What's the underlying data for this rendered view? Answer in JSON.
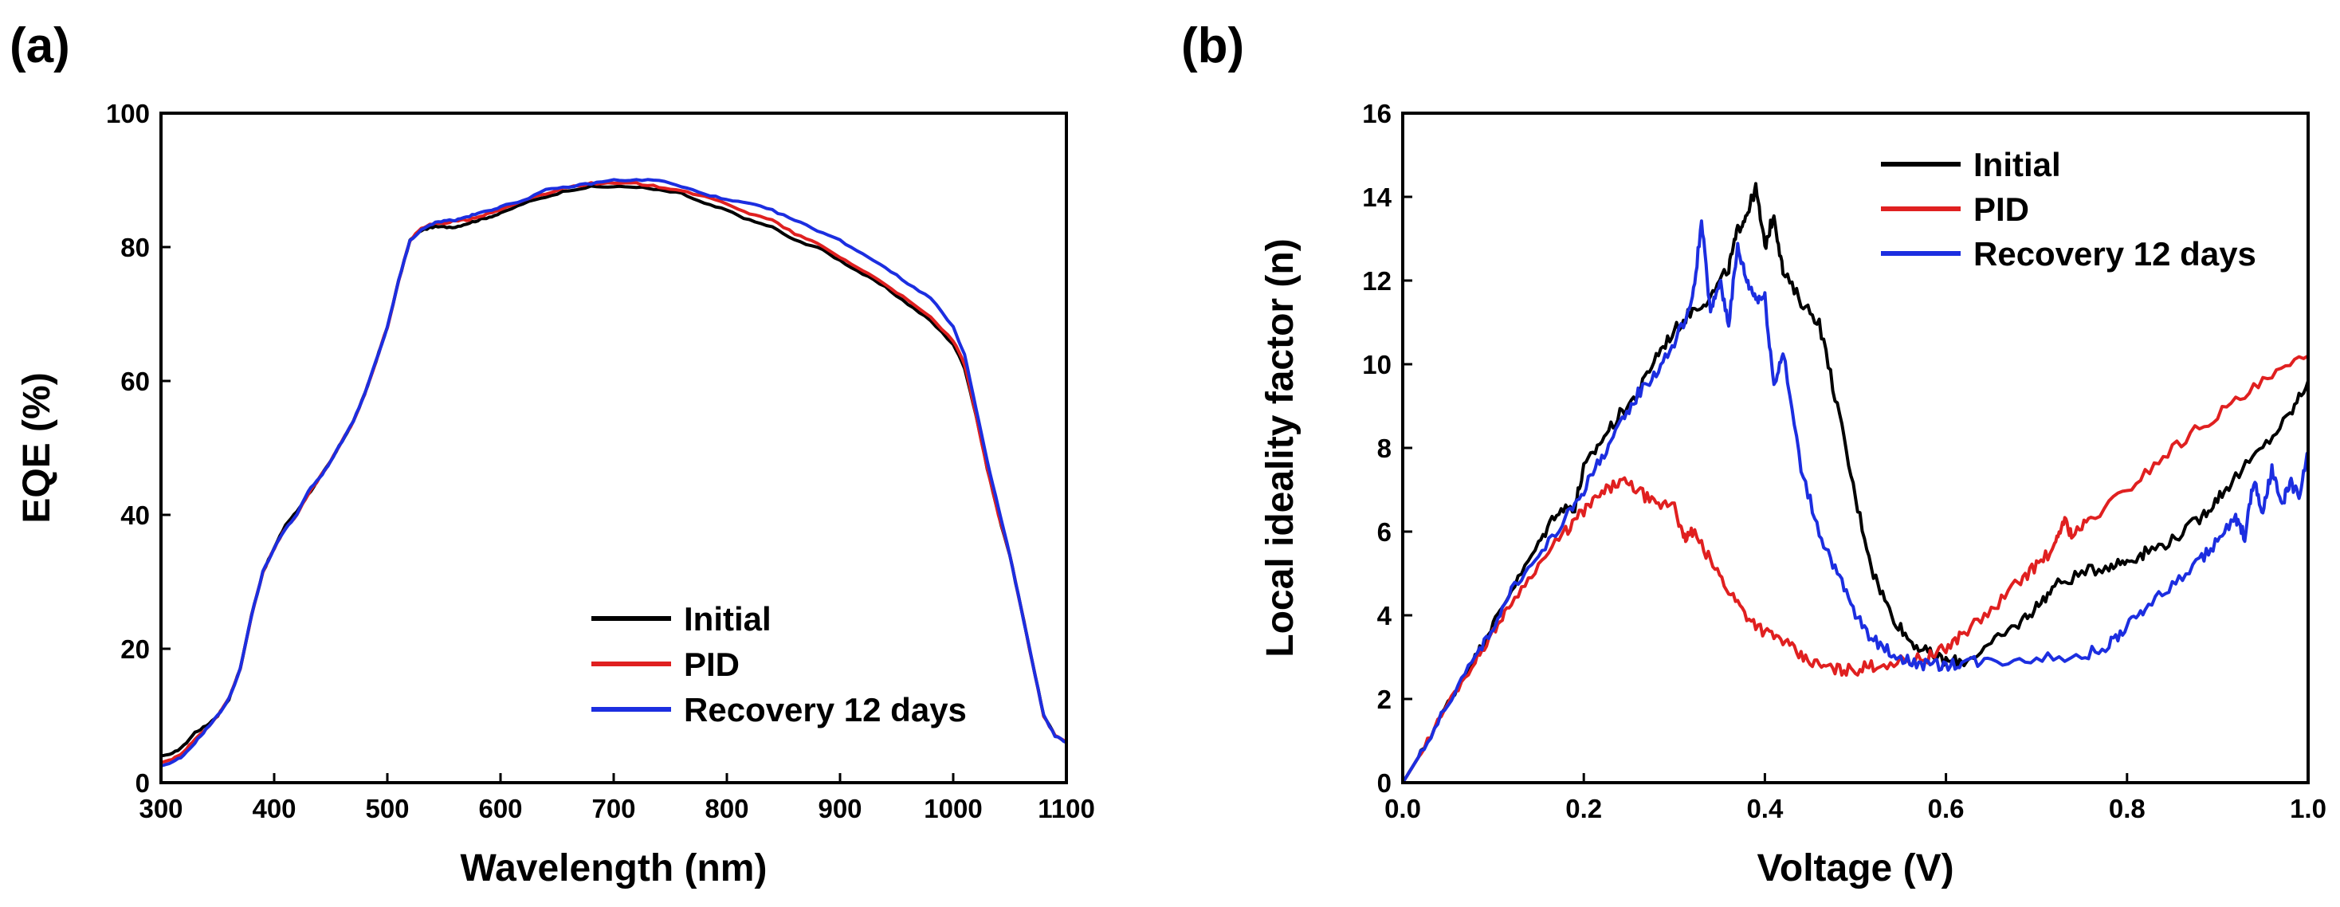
{
  "chart_data": [
    {
      "panel_label": "(a)",
      "type": "line",
      "title": "",
      "xlabel": "Wavelength (nm)",
      "ylabel": "EQE (%)",
      "xlim": [
        300,
        1100
      ],
      "ylim": [
        0,
        100
      ],
      "xticks": [
        300,
        400,
        500,
        600,
        700,
        800,
        900,
        1000,
        1100
      ],
      "yticks": [
        0,
        20,
        40,
        60,
        80,
        100
      ],
      "xtick_labels": [
        "300",
        "400",
        "500",
        "600",
        "700",
        "800",
        "900",
        "1000",
        "1100"
      ],
      "ytick_labels": [
        "0",
        "20",
        "40",
        "60",
        "80",
        "100"
      ],
      "legend_position": "bottom-right",
      "series": [
        {
          "name": "Initial",
          "color": "#000000",
          "x": [
            300,
            310,
            320,
            330,
            340,
            350,
            360,
            370,
            380,
            390,
            400,
            410,
            420,
            430,
            440,
            450,
            460,
            470,
            480,
            490,
            500,
            510,
            520,
            530,
            540,
            550,
            560,
            570,
            580,
            590,
            600,
            620,
            640,
            660,
            680,
            700,
            720,
            740,
            760,
            780,
            800,
            820,
            840,
            860,
            880,
            900,
            920,
            940,
            960,
            980,
            1000,
            1010,
            1020,
            1030,
            1040,
            1050,
            1060,
            1070,
            1080,
            1090,
            1100
          ],
          "values": [
            4,
            4.3,
            5.5,
            7.5,
            8.5,
            10,
            12.5,
            17,
            25,
            31.5,
            35,
            38.5,
            40.5,
            43,
            45.5,
            48,
            51,
            54,
            58,
            63,
            68,
            75,
            81,
            82.5,
            83,
            83,
            83,
            83.5,
            84,
            84.5,
            85,
            86.5,
            87.5,
            88.5,
            89,
            89,
            89,
            88.5,
            88,
            86.5,
            85.5,
            84,
            83,
            81,
            80,
            78,
            76,
            74,
            71.5,
            69,
            65.5,
            62,
            55,
            47,
            40,
            34,
            26,
            18,
            10,
            7,
            6
          ]
        },
        {
          "name": "PID",
          "color": "#e02020",
          "x": [
            300,
            310,
            320,
            330,
            340,
            350,
            360,
            370,
            380,
            390,
            400,
            410,
            420,
            430,
            440,
            450,
            460,
            470,
            480,
            490,
            500,
            510,
            520,
            530,
            540,
            550,
            560,
            570,
            580,
            590,
            600,
            620,
            640,
            660,
            680,
            700,
            720,
            740,
            760,
            780,
            800,
            820,
            840,
            860,
            880,
            900,
            920,
            940,
            960,
            980,
            1000,
            1010,
            1020,
            1030,
            1040,
            1050,
            1060,
            1070,
            1080,
            1090,
            1100
          ],
          "values": [
            3,
            3.5,
            4.5,
            6.5,
            8,
            10,
            12.5,
            17,
            25,
            31.5,
            35,
            38,
            40,
            43,
            45.5,
            48,
            51,
            54,
            58,
            63,
            68,
            75,
            81,
            82.8,
            83.5,
            83.5,
            84,
            84,
            84.5,
            85,
            85.5,
            87,
            88,
            89,
            89.5,
            89.5,
            89.5,
            89,
            88.5,
            87.5,
            86.5,
            85,
            84,
            82,
            80.5,
            78.5,
            76.5,
            74.5,
            72,
            69.5,
            66,
            62.5,
            55,
            47,
            40,
            34,
            26,
            18,
            10,
            7,
            6
          ]
        },
        {
          "name": "Recovery 12 days",
          "color": "#1c2ee0",
          "x": [
            300,
            310,
            320,
            330,
            340,
            350,
            360,
            370,
            380,
            390,
            400,
            410,
            420,
            430,
            440,
            450,
            460,
            470,
            480,
            490,
            500,
            510,
            520,
            530,
            540,
            550,
            560,
            570,
            580,
            590,
            600,
            620,
            640,
            660,
            680,
            700,
            720,
            740,
            760,
            780,
            800,
            820,
            840,
            860,
            880,
            900,
            920,
            940,
            960,
            980,
            1000,
            1010,
            1020,
            1030,
            1040,
            1050,
            1060,
            1070,
            1080,
            1090,
            1100
          ],
          "values": [
            2.5,
            3,
            4,
            6,
            8,
            10,
            12.5,
            17,
            25,
            31.5,
            35,
            38,
            40,
            43.5,
            45.5,
            48,
            51,
            54,
            58,
            63,
            68,
            75,
            81,
            82.5,
            83.5,
            84,
            84,
            84.5,
            85,
            85.5,
            86,
            87,
            88.5,
            89,
            89.5,
            90,
            90,
            90,
            89,
            88,
            87,
            86.5,
            85.5,
            84,
            82.5,
            81,
            79,
            77,
            74.5,
            72.5,
            68,
            64,
            56,
            48,
            41,
            34,
            26,
            18,
            10,
            7,
            6
          ]
        }
      ]
    },
    {
      "panel_label": "(b)",
      "type": "line",
      "title": "",
      "xlabel": "Voltage (V)",
      "ylabel": "Local ideality factor (n)",
      "xlim": [
        0.0,
        1.0
      ],
      "ylim": [
        0,
        16
      ],
      "xticks": [
        0.0,
        0.2,
        0.4,
        0.6,
        0.8,
        1.0
      ],
      "yticks": [
        0,
        2,
        4,
        6,
        8,
        10,
        12,
        14,
        16
      ],
      "xtick_labels": [
        "0.0",
        "0.2",
        "0.4",
        "0.6",
        "0.8",
        "1.0"
      ],
      "ytick_labels": [
        "0",
        "2",
        "4",
        "6",
        "8",
        "10",
        "12",
        "14",
        "16"
      ],
      "legend_position": "top-right",
      "series": [
        {
          "name": "Initial",
          "color": "#000000",
          "x": [
            0.0,
            0.02,
            0.05,
            0.08,
            0.1,
            0.12,
            0.15,
            0.17,
            0.19,
            0.2,
            0.22,
            0.24,
            0.26,
            0.28,
            0.3,
            0.32,
            0.34,
            0.36,
            0.37,
            0.38,
            0.39,
            0.4,
            0.41,
            0.42,
            0.44,
            0.46,
            0.48,
            0.5,
            0.52,
            0.54,
            0.56,
            0.58,
            0.6,
            0.62,
            0.65,
            0.68,
            0.7,
            0.72,
            0.75,
            0.78,
            0.8,
            0.82,
            0.85,
            0.88,
            0.9,
            0.92,
            0.95,
            0.98,
            1.0
          ],
          "values": [
            0,
            0.7,
            1.9,
            3.0,
            3.8,
            4.6,
            5.7,
            6.5,
            6.6,
            7.5,
            8.2,
            8.8,
            9.3,
            10.2,
            10.8,
            11.3,
            11.6,
            12.3,
            13.2,
            13.6,
            14.2,
            12.8,
            13.6,
            12.2,
            11.5,
            11.0,
            9.0,
            6.8,
            5.0,
            4.0,
            3.4,
            3.1,
            2.9,
            2.9,
            3.3,
            3.8,
            4.2,
            4.7,
            5.0,
            5.2,
            5.3,
            5.5,
            5.8,
            6.3,
            6.8,
            7.3,
            8.0,
            8.8,
            9.6
          ]
        },
        {
          "name": "PID",
          "color": "#e02020",
          "x": [
            0.0,
            0.02,
            0.05,
            0.08,
            0.1,
            0.12,
            0.15,
            0.18,
            0.2,
            0.22,
            0.24,
            0.26,
            0.28,
            0.3,
            0.31,
            0.32,
            0.34,
            0.36,
            0.38,
            0.4,
            0.42,
            0.44,
            0.46,
            0.48,
            0.5,
            0.52,
            0.55,
            0.58,
            0.6,
            0.62,
            0.65,
            0.68,
            0.7,
            0.72,
            0.73,
            0.74,
            0.76,
            0.8,
            0.84,
            0.88,
            0.92,
            0.96,
            1.0
          ],
          "values": [
            0,
            0.7,
            1.9,
            2.9,
            3.6,
            4.3,
            5.2,
            6.0,
            6.5,
            6.9,
            7.2,
            7.0,
            6.6,
            6.7,
            5.8,
            6.0,
            5.3,
            4.6,
            4.0,
            3.6,
            3.4,
            3.0,
            2.8,
            2.7,
            2.7,
            2.8,
            2.9,
            3.0,
            3.2,
            3.6,
            4.1,
            4.8,
            5.2,
            5.6,
            6.3,
            5.9,
            6.3,
            7.0,
            7.8,
            8.5,
            9.1,
            9.7,
            10.2
          ]
        },
        {
          "name": "Recovery 12 days",
          "color": "#1c2ee0",
          "x": [
            0.0,
            0.02,
            0.05,
            0.08,
            0.1,
            0.12,
            0.15,
            0.18,
            0.2,
            0.22,
            0.24,
            0.26,
            0.28,
            0.3,
            0.32,
            0.33,
            0.34,
            0.35,
            0.36,
            0.37,
            0.38,
            0.39,
            0.4,
            0.41,
            0.42,
            0.44,
            0.46,
            0.48,
            0.5,
            0.52,
            0.54,
            0.56,
            0.58,
            0.6,
            0.62,
            0.65,
            0.7,
            0.75,
            0.78,
            0.8,
            0.82,
            0.85,
            0.88,
            0.9,
            0.92,
            0.93,
            0.94,
            0.95,
            0.96,
            0.97,
            0.98,
            0.99,
            1.0
          ],
          "values": [
            0,
            0.7,
            1.9,
            3.0,
            3.7,
            4.6,
            5.4,
            6.3,
            7.0,
            7.8,
            8.5,
            9.3,
            9.8,
            10.5,
            11.5,
            13.4,
            11.2,
            12.0,
            11.0,
            12.8,
            12.0,
            11.6,
            11.6,
            9.5,
            10.3,
            7.5,
            6.0,
            5.0,
            4.0,
            3.4,
            3.1,
            2.9,
            2.8,
            2.8,
            2.9,
            2.9,
            3.0,
            3.0,
            3.3,
            3.7,
            4.2,
            4.7,
            5.3,
            5.8,
            6.3,
            5.9,
            7.2,
            6.4,
            7.5,
            6.6,
            7.2,
            6.8,
            7.9
          ]
        }
      ]
    }
  ]
}
